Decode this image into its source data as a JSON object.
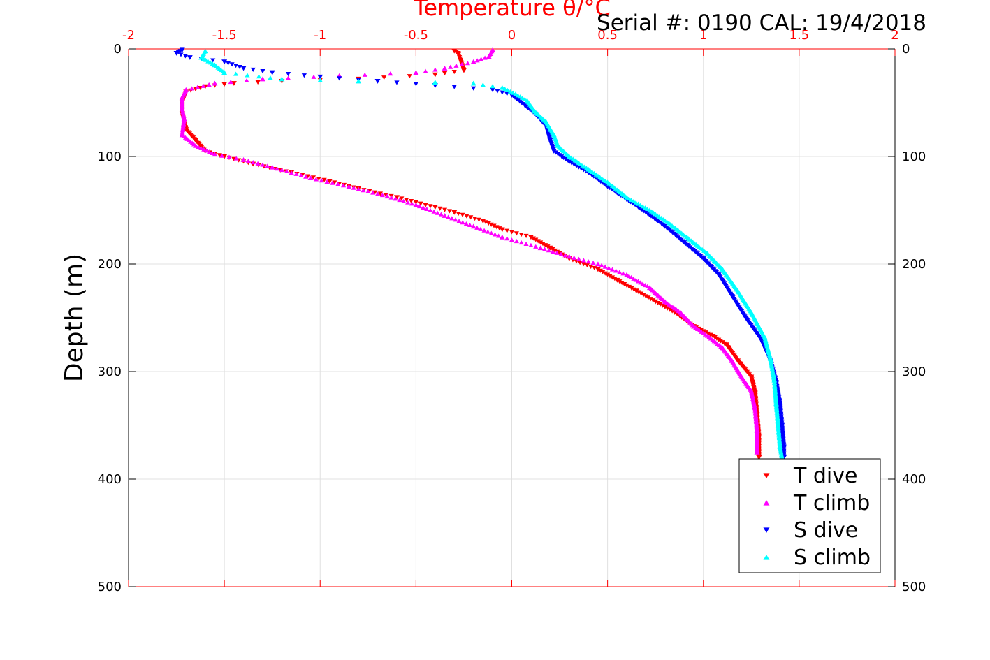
{
  "chart_data": {
    "type": "scatter",
    "title": "Temperature θ/°C",
    "annotation": "Serial #: 0190  CAL: 19/4/2018",
    "ylabel": "Depth (m)",
    "xlim": [
      -2,
      2
    ],
    "ylim": [
      0,
      500
    ],
    "y_reversed": true,
    "x_axis_position": "top",
    "x_ticks": [
      "-2",
      "-1.5",
      "-1",
      "-0.5",
      "0",
      "0.5",
      "1",
      "1.5",
      "2"
    ],
    "y_ticks": [
      "0",
      "100",
      "200",
      "300",
      "400",
      "500"
    ],
    "grid": true,
    "legend_position": "bottom-right",
    "colors": {
      "axis_x": "#ff0000",
      "axis_y": "#000000",
      "grid": "#e0e0e0"
    },
    "series": [
      {
        "name": "T dive",
        "color": "#ff0000",
        "marker": "triangle-down",
        "points": [
          [
            -0.3,
            2
          ],
          [
            -0.28,
            4
          ],
          [
            -0.25,
            20
          ],
          [
            -0.4,
            24
          ],
          [
            -0.8,
            28
          ],
          [
            -1.2,
            30
          ],
          [
            -1.45,
            32
          ],
          [
            -1.6,
            35
          ],
          [
            -1.7,
            40
          ],
          [
            -1.72,
            50
          ],
          [
            -1.72,
            60
          ],
          [
            -1.7,
            75
          ],
          [
            -1.65,
            85
          ],
          [
            -1.6,
            95
          ],
          [
            -1.5,
            100
          ],
          [
            -1.35,
            107
          ],
          [
            -1.15,
            115
          ],
          [
            -0.95,
            123
          ],
          [
            -0.8,
            130
          ],
          [
            -0.6,
            138
          ],
          [
            -0.45,
            145
          ],
          [
            -0.3,
            152
          ],
          [
            -0.15,
            160
          ],
          [
            -0.05,
            168
          ],
          [
            0.1,
            175
          ],
          [
            0.2,
            185
          ],
          [
            0.3,
            195
          ],
          [
            0.45,
            205
          ],
          [
            0.55,
            215
          ],
          [
            0.65,
            225
          ],
          [
            0.75,
            235
          ],
          [
            0.85,
            245
          ],
          [
            0.95,
            258
          ],
          [
            1.05,
            267
          ],
          [
            1.12,
            275
          ],
          [
            1.18,
            290
          ],
          [
            1.25,
            305
          ],
          [
            1.27,
            320
          ],
          [
            1.28,
            340
          ],
          [
            1.29,
            360
          ],
          [
            1.29,
            380
          ]
        ]
      },
      {
        "name": "T climb",
        "color": "#ff00ff",
        "marker": "triangle-up",
        "points": [
          [
            -0.1,
            1
          ],
          [
            -0.12,
            7
          ],
          [
            -0.2,
            12
          ],
          [
            -0.35,
            18
          ],
          [
            -0.5,
            22
          ],
          [
            -0.9,
            25
          ],
          [
            -1.3,
            28
          ],
          [
            -1.55,
            32
          ],
          [
            -1.7,
            38
          ],
          [
            -1.72,
            45
          ],
          [
            -1.72,
            55
          ],
          [
            -1.71,
            65
          ],
          [
            -1.72,
            80
          ],
          [
            -1.65,
            90
          ],
          [
            -1.55,
            98
          ],
          [
            -1.4,
            103
          ],
          [
            -1.25,
            110
          ],
          [
            -1.05,
            120
          ],
          [
            -0.85,
            128
          ],
          [
            -0.65,
            137
          ],
          [
            -0.5,
            145
          ],
          [
            -0.35,
            155
          ],
          [
            -0.2,
            165
          ],
          [
            -0.05,
            175
          ],
          [
            0.15,
            185
          ],
          [
            0.3,
            193
          ],
          [
            0.45,
            200
          ],
          [
            0.6,
            210
          ],
          [
            0.72,
            222
          ],
          [
            0.8,
            235
          ],
          [
            0.88,
            245
          ],
          [
            0.95,
            258
          ],
          [
            1.03,
            268
          ],
          [
            1.1,
            278
          ],
          [
            1.15,
            290
          ],
          [
            1.2,
            305
          ],
          [
            1.25,
            318
          ],
          [
            1.27,
            335
          ],
          [
            1.28,
            355
          ],
          [
            1.28,
            375
          ]
        ]
      },
      {
        "name": "S dive",
        "color": "#0000ff",
        "marker": "triangle-down",
        "points": [
          [
            -1.72,
            1
          ],
          [
            -1.75,
            4
          ],
          [
            -1.68,
            8
          ],
          [
            -1.5,
            12
          ],
          [
            -1.4,
            18
          ],
          [
            -1.25,
            22
          ],
          [
            -1.0,
            26
          ],
          [
            -0.7,
            30
          ],
          [
            -0.4,
            34
          ],
          [
            -0.1,
            38
          ],
          [
            0.0,
            43
          ],
          [
            0.05,
            50
          ],
          [
            0.12,
            60
          ],
          [
            0.18,
            72
          ],
          [
            0.2,
            85
          ],
          [
            0.22,
            95
          ],
          [
            0.3,
            105
          ],
          [
            0.4,
            115
          ],
          [
            0.5,
            128
          ],
          [
            0.6,
            140
          ],
          [
            0.7,
            152
          ],
          [
            0.8,
            165
          ],
          [
            0.9,
            180
          ],
          [
            1.0,
            195
          ],
          [
            1.08,
            210
          ],
          [
            1.15,
            230
          ],
          [
            1.22,
            250
          ],
          [
            1.3,
            270
          ],
          [
            1.35,
            290
          ],
          [
            1.38,
            310
          ],
          [
            1.4,
            330
          ],
          [
            1.41,
            350
          ],
          [
            1.42,
            370
          ],
          [
            1.42,
            380
          ]
        ]
      },
      {
        "name": "S climb",
        "color": "#00ffff",
        "marker": "triangle-up",
        "points": [
          [
            -1.6,
            2
          ],
          [
            -1.62,
            8
          ],
          [
            -1.55,
            15
          ],
          [
            -1.5,
            22
          ],
          [
            -1.2,
            28
          ],
          [
            -0.8,
            30
          ],
          [
            -0.4,
            31
          ],
          [
            -0.2,
            32
          ],
          [
            -0.05,
            36
          ],
          [
            0.02,
            42
          ],
          [
            0.08,
            48
          ],
          [
            0.12,
            58
          ],
          [
            0.18,
            68
          ],
          [
            0.22,
            80
          ],
          [
            0.24,
            90
          ],
          [
            0.3,
            100
          ],
          [
            0.4,
            112
          ],
          [
            0.5,
            124
          ],
          [
            0.6,
            138
          ],
          [
            0.72,
            150
          ],
          [
            0.82,
            162
          ],
          [
            0.92,
            176
          ],
          [
            1.02,
            190
          ],
          [
            1.1,
            205
          ],
          [
            1.18,
            225
          ],
          [
            1.25,
            245
          ],
          [
            1.32,
            268
          ],
          [
            1.35,
            288
          ],
          [
            1.37,
            308
          ],
          [
            1.38,
            330
          ],
          [
            1.39,
            350
          ],
          [
            1.4,
            370
          ],
          [
            1.41,
            380
          ]
        ]
      }
    ]
  }
}
